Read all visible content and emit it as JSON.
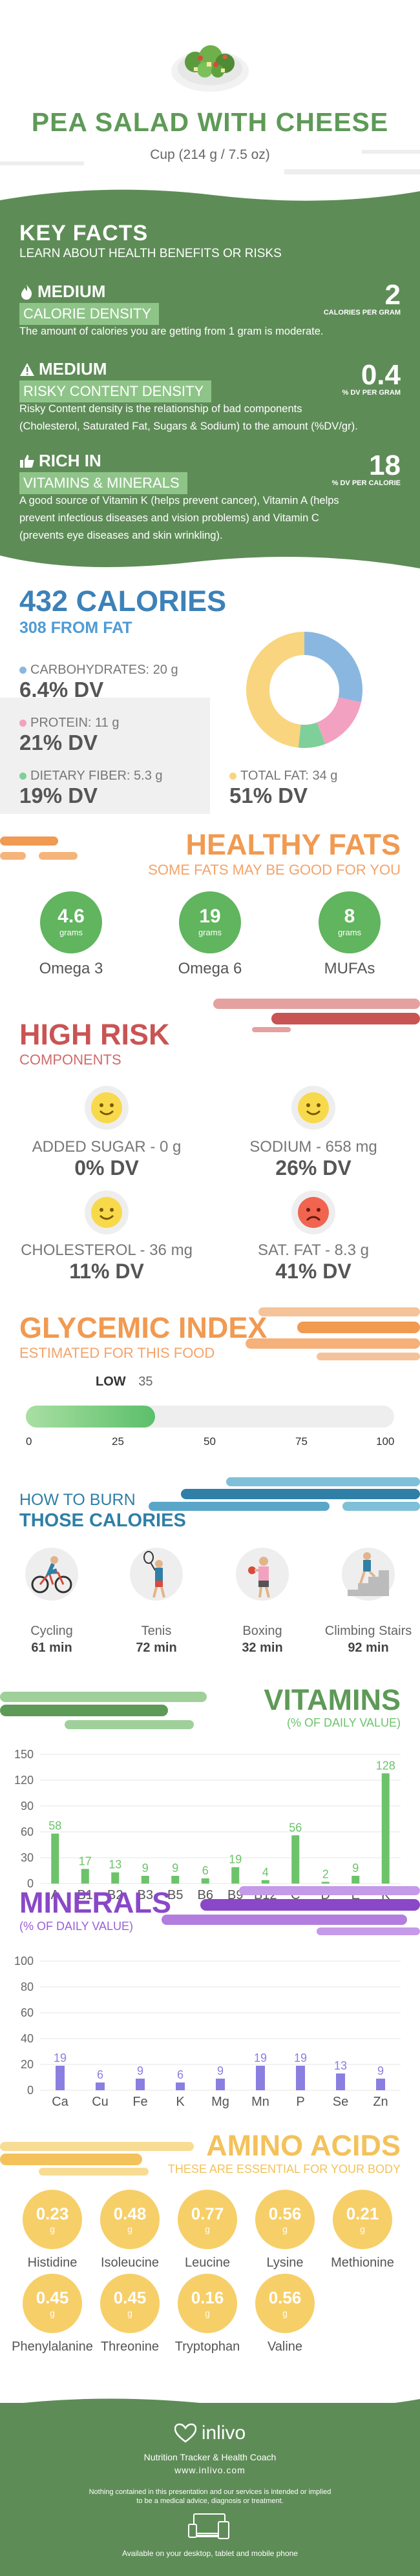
{
  "header": {
    "title": "PEA SALAD WITH CHEESE",
    "serving": "Cup (214 g / 7.5 oz)"
  },
  "key_facts": {
    "heading": "KEY FACTS",
    "subheading": "LEARN ABOUT HEALTH BENEFITS OR RISKS",
    "blocks": [
      {
        "level": "MEDIUM",
        "tag": "CALORIE DENSITY",
        "value": "2",
        "unit": "CALORIES PER GRAM",
        "description": "The amount of calories you are getting from 1 gram is moderate.",
        "icon": "flame-icon"
      },
      {
        "level": "MEDIUM",
        "tag": "RISKY CONTENT DENSITY",
        "value": "0.4",
        "unit": "% DV PER GRAM",
        "description_line1": "Risky Content density is the relationship of bad components",
        "description_line2": "(Cholesterol, Saturated Fat, Sugars & Sodium) to the amount (%DV/gr).",
        "icon": "warning-icon"
      },
      {
        "level": "RICH  IN",
        "tag": "VITAMINS & MINERALS",
        "value": "18",
        "unit": "% DV PER CALORIE",
        "description_line1": "A good source of Vitamin K (helps prevent cancer), Vitamin A (helps",
        "description_line2": "prevent infectious diseases and vision problems) and Vitamin C",
        "description_line3": "(prevents eye diseases and skin wrinkling).",
        "icon": "thumbs-up-icon"
      }
    ]
  },
  "calories": {
    "title": "432 CALORIES",
    "from_fat": "308 FROM FAT",
    "macros": [
      {
        "label": "CARBOHYDRATES: 20 g",
        "dv": "6.4% DV",
        "color": "#8ab7e0"
      },
      {
        "label": "PROTEIN: 11 g",
        "dv": "21% DV",
        "color": "#f3a1c0"
      },
      {
        "label": "DIETARY FIBER: 5.3 g",
        "dv": "19% DV",
        "color": "#7fcf9a"
      },
      {
        "label": "TOTAL FAT: 34 g",
        "dv": "51% DV",
        "color": "#f8d57e"
      }
    ],
    "donut": [
      {
        "name": "carbohydrates",
        "value": 20,
        "color": "#8ab7e0"
      },
      {
        "name": "protein",
        "value": 11,
        "color": "#f3a1c0"
      },
      {
        "name": "fiber",
        "value": 5.3,
        "color": "#7fcf9a"
      },
      {
        "name": "fat",
        "value": 34,
        "color": "#f8d57e"
      }
    ]
  },
  "healthy_fats": {
    "title": "HEALTHY FATS",
    "subtitle": "SOME FATS MAY BE GOOD FOR YOU",
    "items": [
      {
        "value": "4.6",
        "unit": "grams",
        "label": "Omega 3"
      },
      {
        "value": "19",
        "unit": "grams",
        "label": "Omega 6"
      },
      {
        "value": "8",
        "unit": "grams",
        "label": "MUFAs"
      }
    ]
  },
  "high_risk": {
    "title": "HIGH RISK",
    "subtitle": "COMPONENTS",
    "items": [
      {
        "label": "ADDED SUGAR - 0 g",
        "dv": "0% DV",
        "face": "smile",
        "color": "#f8d94c"
      },
      {
        "label": "SODIUM - 658 mg",
        "dv": "26% DV",
        "face": "smile",
        "color": "#f8d94c"
      },
      {
        "label": "CHOLESTEROL - 36 mg",
        "dv": "11% DV",
        "face": "smile",
        "color": "#f8d94c"
      },
      {
        "label": "SAT. FAT - 8.3 g",
        "dv": "41% DV",
        "face": "sad",
        "color": "#f06450"
      }
    ]
  },
  "glycemic": {
    "title": "GLYCEMIC INDEX",
    "subtitle": "ESTIMATED FOR THIS FOOD",
    "level": "LOW",
    "value": "35",
    "value_num": 35,
    "ticks": [
      "0",
      "25",
      "50",
      "75",
      "100"
    ]
  },
  "burn": {
    "title_line1": "HOW TO BURN",
    "title_line2": "THOSE CALORIES",
    "items": [
      {
        "label": "Cycling",
        "minutes": "61 min",
        "icon": "cycling-icon"
      },
      {
        "label": "Tenis",
        "minutes": "72 min",
        "icon": "tennis-icon"
      },
      {
        "label": "Boxing",
        "minutes": "32 min",
        "icon": "boxing-icon"
      },
      {
        "label": "Climbing Stairs",
        "minutes": "92 min",
        "icon": "stairs-icon"
      }
    ]
  },
  "vitamins": {
    "title": "VITAMINS",
    "subtitle": "(% OF DAILY VALUE)"
  },
  "minerals": {
    "title": "MINERALS",
    "subtitle": "(% OF DAILY VALUE)"
  },
  "chart_data": [
    {
      "type": "bar",
      "title": "VITAMINS",
      "subtitle": "(% OF DAILY VALUE)",
      "categories": [
        "A",
        "B1",
        "B2",
        "B3",
        "B5",
        "B6",
        "B9",
        "B12",
        "C",
        "D",
        "E",
        "K"
      ],
      "values": [
        58,
        17,
        13,
        9,
        9,
        6,
        19,
        4,
        56,
        2,
        9,
        128
      ],
      "yticks": [
        "150",
        "120",
        "90",
        "60",
        "30",
        "0"
      ],
      "ylim": [
        0,
        150
      ],
      "color": "#6cc36a",
      "grid": true
    },
    {
      "type": "bar",
      "title": "MINERALS",
      "subtitle": "(% OF DAILY VALUE)",
      "categories": [
        "Ca",
        "Cu",
        "Fe",
        "K",
        "Mg",
        "Mn",
        "P",
        "Se",
        "Zn"
      ],
      "values": [
        19,
        6,
        9,
        6,
        9,
        19,
        19,
        13,
        9
      ],
      "yticks": [
        "100",
        "80",
        "60",
        "40",
        "20",
        "0"
      ],
      "ylim": [
        0,
        100
      ],
      "color": "#8a7fe0",
      "grid": true
    }
  ],
  "amino": {
    "title": "AMINO ACIDS",
    "subtitle": "THESE ARE ESSENTIAL FOR YOUR BODY",
    "unit": "g",
    "items": [
      {
        "value": "0.23",
        "label": "Histidine"
      },
      {
        "value": "0.48",
        "label": "Isoleucine"
      },
      {
        "value": "0.77",
        "label": "Leucine"
      },
      {
        "value": "0.56",
        "label": "Lysine"
      },
      {
        "value": "0.21",
        "label": "Methionine"
      },
      {
        "value": "0.45",
        "label": "Phenylalanine"
      },
      {
        "value": "0.45",
        "label": "Threonine"
      },
      {
        "value": "0.16",
        "label": "Tryptophan"
      },
      {
        "value": "0.56",
        "label": "Valine"
      }
    ]
  },
  "footer": {
    "brand": "inlivo",
    "tagline": "Nutrition Tracker & Health Coach",
    "url": "www.inlivo.com",
    "disclaimer_line1": "Nothing contained in this presentation and our services is intended or implied",
    "disclaimer_line2": "to be a medical advice, diagnosis or treatment.",
    "available": "Available on your desktop, tablet and mobile phone"
  },
  "colors": {
    "green": "#5e9a57",
    "blue": "#3d81b8",
    "orange": "#f09a52",
    "red": "#c95454",
    "purple": "#8a48c8",
    "yellow": "#f3c25a",
    "teal": "#2f7fa6"
  }
}
